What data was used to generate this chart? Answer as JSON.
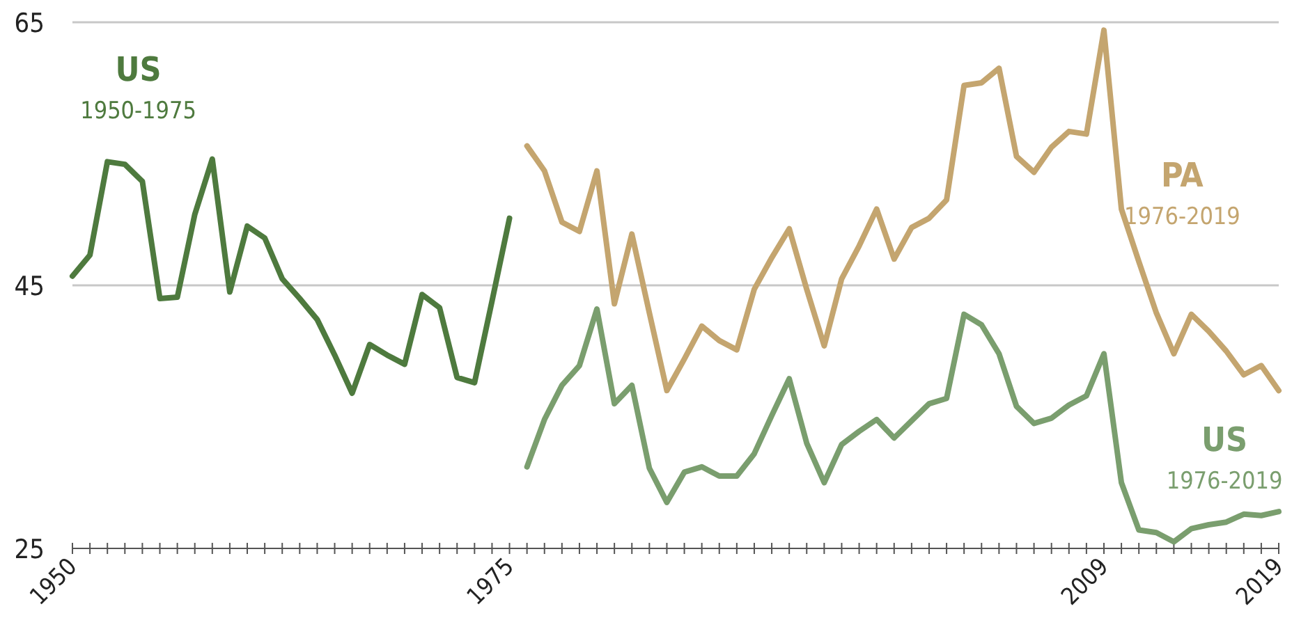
{
  "chart_data": {
    "type": "line",
    "x": [
      1950,
      1951,
      1952,
      1953,
      1954,
      1955,
      1956,
      1957,
      1958,
      1959,
      1960,
      1961,
      1962,
      1963,
      1964,
      1965,
      1966,
      1967,
      1968,
      1969,
      1970,
      1971,
      1972,
      1973,
      1974,
      1975,
      1976,
      1977,
      1978,
      1979,
      1980,
      1981,
      1982,
      1983,
      1984,
      1985,
      1986,
      1987,
      1988,
      1989,
      1990,
      1991,
      1992,
      1993,
      1994,
      1995,
      1996,
      1997,
      1998,
      1999,
      2000,
      2001,
      2002,
      2003,
      2004,
      2005,
      2006,
      2007,
      2008,
      2009,
      2010,
      2011,
      2012,
      2013,
      2014,
      2015,
      2016,
      2017,
      2018,
      2019
    ],
    "series": [
      {
        "name": "US",
        "color": "#4e7a3e",
        "values": [
          45.7,
          47.3,
          54.4,
          54.2,
          52.9,
          44.0,
          44.1,
          50.4,
          54.6,
          44.5,
          49.5,
          48.6,
          45.5,
          44.0,
          42.4,
          39.7,
          36.8,
          40.5,
          39.7,
          39.0,
          44.3,
          43.3,
          38.0,
          37.6,
          43.8,
          50.1,
          null,
          null,
          null,
          null,
          null,
          null,
          null,
          null,
          null,
          null,
          null,
          null,
          null,
          null,
          null,
          null,
          null,
          null,
          null,
          null,
          null,
          null,
          null,
          null,
          null,
          null,
          null,
          null,
          null,
          null,
          null,
          null,
          null,
          null,
          null,
          null,
          null,
          null,
          null,
          null,
          null,
          null,
          null,
          null
        ]
      },
      {
        "name": "PA",
        "color": "#c4a56f",
        "values": [
          null,
          null,
          null,
          null,
          null,
          null,
          null,
          null,
          null,
          null,
          null,
          null,
          null,
          null,
          null,
          null,
          null,
          null,
          null,
          null,
          null,
          null,
          null,
          null,
          null,
          null,
          55.6,
          53.7,
          49.8,
          49.1,
          53.7,
          43.6,
          48.9,
          42.9,
          37.0,
          39.4,
          41.9,
          40.8,
          40.1,
          44.7,
          47.1,
          49.3,
          44.7,
          40.4,
          45.5,
          48.0,
          50.8,
          47.0,
          49.4,
          50.1,
          51.5,
          60.2,
          60.4,
          61.5,
          54.8,
          53.6,
          55.5,
          56.7,
          56.5,
          64.4,
          50.8,
          46.8,
          42.9,
          39.8,
          42.8,
          41.5,
          40.0,
          38.2,
          38.9,
          37.0
        ]
      },
      {
        "name": "US",
        "color": "#7a9e6e",
        "values": [
          null,
          null,
          null,
          null,
          null,
          null,
          null,
          null,
          null,
          null,
          null,
          null,
          null,
          null,
          null,
          null,
          null,
          null,
          null,
          null,
          null,
          null,
          null,
          null,
          null,
          null,
          31.2,
          34.8,
          37.4,
          38.9,
          43.2,
          36.0,
          37.4,
          31.1,
          28.5,
          30.8,
          31.2,
          30.5,
          30.5,
          32.2,
          35.1,
          37.9,
          33.0,
          30.0,
          32.9,
          33.9,
          34.8,
          33.4,
          34.7,
          36.0,
          36.4,
          42.8,
          42.0,
          39.8,
          35.8,
          34.5,
          34.9,
          35.9,
          36.6,
          39.8,
          30.0,
          26.4,
          26.2,
          25.5,
          26.5,
          26.8,
          27.0,
          27.6,
          27.5,
          27.8
        ]
      }
    ],
    "annotations": [
      "1950-1975",
      "1976-2019",
      "1976-2019"
    ],
    "xlim": [
      1950,
      2019
    ],
    "xticks": [
      1950,
      {
        "value": 1951,
        "label": null
      },
      {
        "value": 1952,
        "label": null
      },
      {
        "value": 1953,
        "label": null
      },
      {
        "value": 1954,
        "label": null
      },
      {
        "value": 1955,
        "label": null
      },
      {
        "value": 1956,
        "label": null
      },
      {
        "value": 1957,
        "label": null
      },
      {
        "value": 1958,
        "label": null
      },
      {
        "value": 1959,
        "label": null
      },
      {
        "value": 1960,
        "label": null
      },
      {
        "value": 1961,
        "label": null
      },
      {
        "value": 1962,
        "label": null
      },
      {
        "value": 1963,
        "label": null
      },
      {
        "value": 1964,
        "label": null
      },
      {
        "value": 1965,
        "label": null
      },
      {
        "value": 1966,
        "label": null
      },
      {
        "value": 1967,
        "label": null
      },
      {
        "value": 1968,
        "label": null
      },
      {
        "value": 1969,
        "label": null
      },
      {
        "value": 1970,
        "label": null
      },
      {
        "value": 1971,
        "label": null
      },
      {
        "value": 1972,
        "label": null
      },
      {
        "value": 1973,
        "label": null
      },
      {
        "value": 1974,
        "label": null
      },
      1975,
      {
        "value": 1976,
        "label": null
      },
      {
        "value": 1977,
        "label": null
      },
      {
        "value": 1978,
        "label": null
      },
      {
        "value": 1979,
        "label": null
      },
      {
        "value": 1980,
        "label": null
      },
      {
        "value": 1981,
        "label": null
      },
      {
        "value": 1982,
        "label": null
      },
      {
        "value": 1983,
        "label": null
      },
      {
        "value": 1984,
        "label": null
      },
      {
        "value": 1985,
        "label": null
      },
      {
        "value": 1986,
        "label": null
      },
      {
        "value": 1987,
        "label": null
      },
      {
        "value": 1988,
        "label": null
      },
      {
        "value": 1989,
        "label": null
      },
      {
        "value": 1990,
        "label": null
      },
      {
        "value": 1991,
        "label": null
      },
      {
        "value": 1992,
        "label": null
      },
      {
        "value": 1993,
        "label": null
      },
      {
        "value": 1994,
        "label": null
      },
      {
        "value": 1995,
        "label": null
      },
      {
        "value": 1996,
        "label": null
      },
      {
        "value": 1997,
        "label": null
      },
      {
        "value": 1998,
        "label": null
      },
      {
        "value": 1999,
        "label": null
      },
      {
        "value": 2000,
        "label": null
      },
      {
        "value": 2001,
        "label": null
      },
      {
        "value": 2002,
        "label": null
      },
      {
        "value": 2003,
        "label": null
      },
      {
        "value": 2004,
        "label": null
      },
      {
        "value": 2005,
        "label": null
      },
      {
        "value": 2006,
        "label": null
      },
      {
        "value": 2007,
        "label": null
      },
      {
        "value": 2008,
        "label": null
      },
      2009,
      {
        "value": 2010,
        "label": null
      },
      {
        "value": 2011,
        "label": null
      },
      {
        "value": 2012,
        "label": null
      },
      {
        "value": 2013,
        "label": null
      },
      {
        "value": 2014,
        "label": null
      },
      {
        "value": 2015,
        "label": null
      },
      {
        "value": 2016,
        "label": null
      },
      {
        "value": 2017,
        "label": null
      },
      {
        "value": 2018,
        "label": null
      },
      2019
    ],
    "ylim": [
      25,
      65
    ],
    "yticks": [
      25,
      45,
      65
    ],
    "grid": "y",
    "marker": "none",
    "line_style": "solid"
  }
}
